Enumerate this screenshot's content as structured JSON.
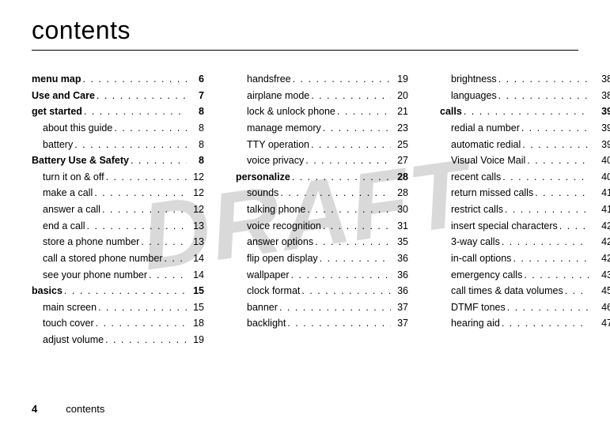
{
  "title": "contents",
  "watermark": "DRAFT",
  "footer": {
    "page": "4",
    "label": "contents"
  },
  "columns": [
    [
      {
        "label": "menu map",
        "page": "6",
        "bold": true
      },
      {
        "label": "Use and Care",
        "page": "7",
        "bold": true
      },
      {
        "label": "get started",
        "page": "8",
        "bold": true
      },
      {
        "label": "about this guide",
        "page": "8",
        "sub": true
      },
      {
        "label": "battery",
        "page": "8",
        "sub": true
      },
      {
        "label": "Battery Use & Safety",
        "page": "8",
        "bold": true
      },
      {
        "label": "turn it on & off",
        "page": "12",
        "sub": true
      },
      {
        "label": "make a call",
        "page": "12",
        "sub": true
      },
      {
        "label": "answer a call",
        "page": "12",
        "sub": true
      },
      {
        "label": "end a call",
        "page": "13",
        "sub": true
      },
      {
        "label": "store a phone number",
        "page": "13",
        "sub": true
      },
      {
        "label": "call a stored phone number",
        "page": "14",
        "sub": true
      },
      {
        "label": "see your phone number",
        "page": "14",
        "sub": true
      },
      {
        "label": "basics",
        "page": "15",
        "bold": true
      },
      {
        "label": "main screen",
        "page": "15",
        "sub": true
      },
      {
        "label": "touch cover",
        "page": "18",
        "sub": true
      },
      {
        "label": "adjust volume",
        "page": "19",
        "sub": true
      }
    ],
    [
      {
        "label": "handsfree",
        "page": "19",
        "sub": true
      },
      {
        "label": "airplane mode",
        "page": "20",
        "sub": true
      },
      {
        "label": "lock & unlock phone",
        "page": "21",
        "sub": true
      },
      {
        "label": "manage memory",
        "page": "23",
        "sub": true
      },
      {
        "label": "TTY operation",
        "page": "25",
        "sub": true
      },
      {
        "label": "voice privacy",
        "page": "27",
        "sub": true
      },
      {
        "label": "personalize",
        "page": "28",
        "bold": true
      },
      {
        "label": "sounds",
        "page": "28",
        "sub": true
      },
      {
        "label": "talking phone",
        "page": "30",
        "sub": true
      },
      {
        "label": "voice recognition",
        "page": "31",
        "sub": true
      },
      {
        "label": "answer options",
        "page": "35",
        "sub": true
      },
      {
        "label": "flip open display",
        "page": "36",
        "sub": true
      },
      {
        "label": "wallpaper",
        "page": "36",
        "sub": true
      },
      {
        "label": "clock format",
        "page": "36",
        "sub": true
      },
      {
        "label": "banner",
        "page": "37",
        "sub": true
      },
      {
        "label": "backlight",
        "page": "37",
        "sub": true
      }
    ],
    [
      {
        "label": "brightness",
        "page": "38",
        "sub": true
      },
      {
        "label": "languages",
        "page": "38",
        "sub": true
      },
      {
        "label": "calls",
        "page": "39",
        "bold": true
      },
      {
        "label": "redial a number",
        "page": "39",
        "sub": true
      },
      {
        "label": "automatic redial",
        "page": "39",
        "sub": true
      },
      {
        "label": "Visual Voice Mail",
        "page": "40",
        "sub": true
      },
      {
        "label": "recent calls",
        "page": "40",
        "sub": true
      },
      {
        "label": "return missed calls",
        "page": "41",
        "sub": true
      },
      {
        "label": "restrict calls",
        "page": "41",
        "sub": true
      },
      {
        "label": "insert special characters",
        "page": "42",
        "sub": true
      },
      {
        "label": "3-way calls",
        "page": "42",
        "sub": true
      },
      {
        "label": "in-call options",
        "page": "42",
        "sub": true
      },
      {
        "label": "emergency calls",
        "page": "43",
        "sub": true
      },
      {
        "label": "call times & data volumes",
        "page": "45",
        "sub": true
      },
      {
        "label": "DTMF tones",
        "page": "46",
        "sub": true
      },
      {
        "label": "hearing aid",
        "page": "47",
        "sub": true
      }
    ]
  ]
}
